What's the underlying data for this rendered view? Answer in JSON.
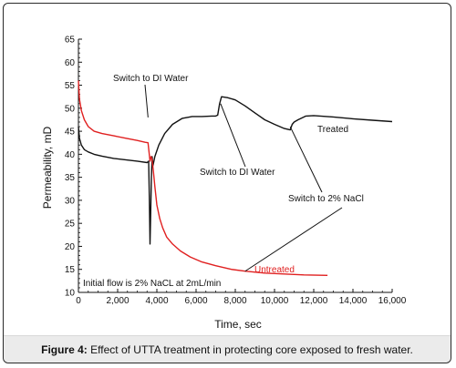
{
  "caption": {
    "label": "Figure 4:",
    "text": "Effect of UTTA treatment in protecting core exposed to fresh water."
  },
  "chart_data": {
    "type": "line",
    "xlabel": "Time, sec",
    "ylabel": "Permeability, mD",
    "xlim": [
      0,
      16000
    ],
    "ylim": [
      10,
      65
    ],
    "xticks": [
      0,
      2000,
      4000,
      6000,
      8000,
      10000,
      12000,
      14000,
      16000
    ],
    "xtick_labels": [
      "0",
      "2,000",
      "4,000",
      "6,000",
      "8,000",
      "10,000",
      "12,000",
      "14,000",
      "16,000"
    ],
    "yticks": [
      10,
      15,
      20,
      25,
      30,
      35,
      40,
      45,
      50,
      55,
      60,
      65
    ],
    "ytick_labels": [
      "10",
      "15",
      "20",
      "25",
      "30",
      "35",
      "40",
      "45",
      "50",
      "55",
      "60",
      "65"
    ],
    "grid": false,
    "series": [
      {
        "name": "Treated",
        "color": "#111111",
        "x": [
          0,
          50,
          150,
          300,
          500,
          800,
          1200,
          1800,
          2400,
          3000,
          3500,
          3580,
          3620,
          3650,
          3680,
          3720,
          3760,
          3800,
          3900,
          4100,
          4400,
          4800,
          5300,
          5800,
          6300,
          6800,
          7000,
          7100,
          7200,
          7300,
          7600,
          8000,
          8500,
          9000,
          9500,
          10000,
          10500,
          10800,
          10900,
          11000,
          11200,
          11600,
          12000,
          13000,
          14000,
          15000,
          16000
        ],
        "y": [
          46,
          43.5,
          42,
          41,
          40.5,
          40,
          39.6,
          39.1,
          38.8,
          38.5,
          38.2,
          38.5,
          30,
          20.5,
          26,
          35,
          39.5,
          37.5,
          39.5,
          42,
          44.5,
          46.5,
          47.8,
          48.2,
          48.2,
          48.3,
          48.3,
          48.5,
          51,
          52.5,
          52.3,
          51.8,
          50.5,
          49,
          47.5,
          46.5,
          45.6,
          45.3,
          46.5,
          47,
          47.5,
          48.3,
          48.4,
          48.1,
          47.7,
          47.4,
          47.1
        ]
      },
      {
        "name": "Untreated",
        "color": "#e02020",
        "x": [
          0,
          50,
          150,
          300,
          500,
          800,
          1200,
          1800,
          2400,
          3000,
          3400,
          3550,
          3650,
          3700,
          3760,
          3820,
          3900,
          4000,
          4150,
          4300,
          4500,
          4800,
          5200,
          5700,
          6300,
          7000,
          7800,
          8500,
          9500,
          10500,
          11500,
          12700
        ],
        "y": [
          56,
          52,
          49.5,
          47.5,
          46,
          45,
          44.5,
          44,
          43.5,
          43,
          42.6,
          42.5,
          38.5,
          39.5,
          38.8,
          36.5,
          33,
          29,
          26,
          24,
          22,
          20.5,
          19,
          17.7,
          16.6,
          15.8,
          15,
          14.6,
          14.2,
          14,
          13.8,
          13.7
        ]
      }
    ],
    "annotations": [
      {
        "text": "Switch to DI Water",
        "at": [
          3550,
          48
        ]
      },
      {
        "text": "Switch to DI Water",
        "at": [
          7250,
          51
        ]
      },
      {
        "text": "Switch to 2% NaCl",
        "at": [
          10800,
          46
        ]
      },
      {
        "text": "Switch to 2% NaCl",
        "at": [
          8500,
          14.6
        ]
      },
      {
        "text": "Treated"
      },
      {
        "text": "Untreated"
      },
      {
        "text": "Initial flow is 2% NaCL at 2mL/min"
      }
    ]
  }
}
